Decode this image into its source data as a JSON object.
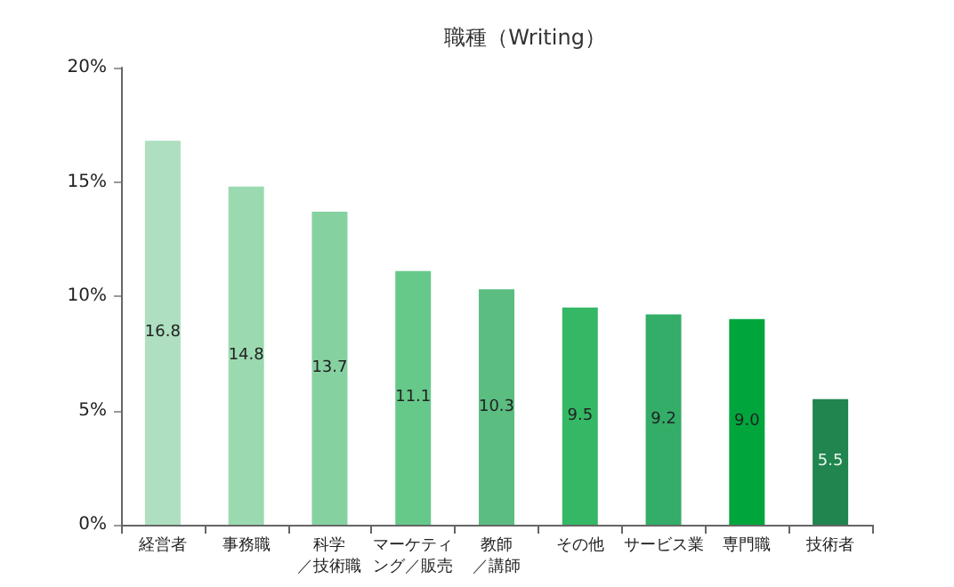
{
  "chart_data": {
    "type": "bar",
    "title": "職種（Writing）",
    "categories": [
      "経営者",
      "事務職",
      "科学／技術職",
      "マーケティング／販売",
      "教師／講師",
      "その他",
      "サービス業",
      "専門職",
      "技術者"
    ],
    "values": [
      16.8,
      14.8,
      13.7,
      11.1,
      10.3,
      9.5,
      9.2,
      9.0,
      5.5
    ],
    "colors": [
      "#addfc0",
      "#9bdab0",
      "#86d1a0",
      "#66c98a",
      "#5bbd80",
      "#35b865",
      "#33ad67",
      "#00a63c",
      "#20854e"
    ],
    "value_labels": [
      "16.8",
      "14.8",
      "13.7",
      "11.1",
      "10.3",
      "9.5",
      "9.2",
      "9.0",
      "5.5"
    ],
    "ylim": [
      0,
      20
    ],
    "yticks": [
      {
        "value": 0,
        "label": "0%"
      },
      {
        "value": 5,
        "label": "5%"
      },
      {
        "value": 10,
        "label": "10%"
      },
      {
        "value": 15,
        "label": "15%"
      },
      {
        "value": 20,
        "label": "20%"
      }
    ],
    "grid": false
  }
}
